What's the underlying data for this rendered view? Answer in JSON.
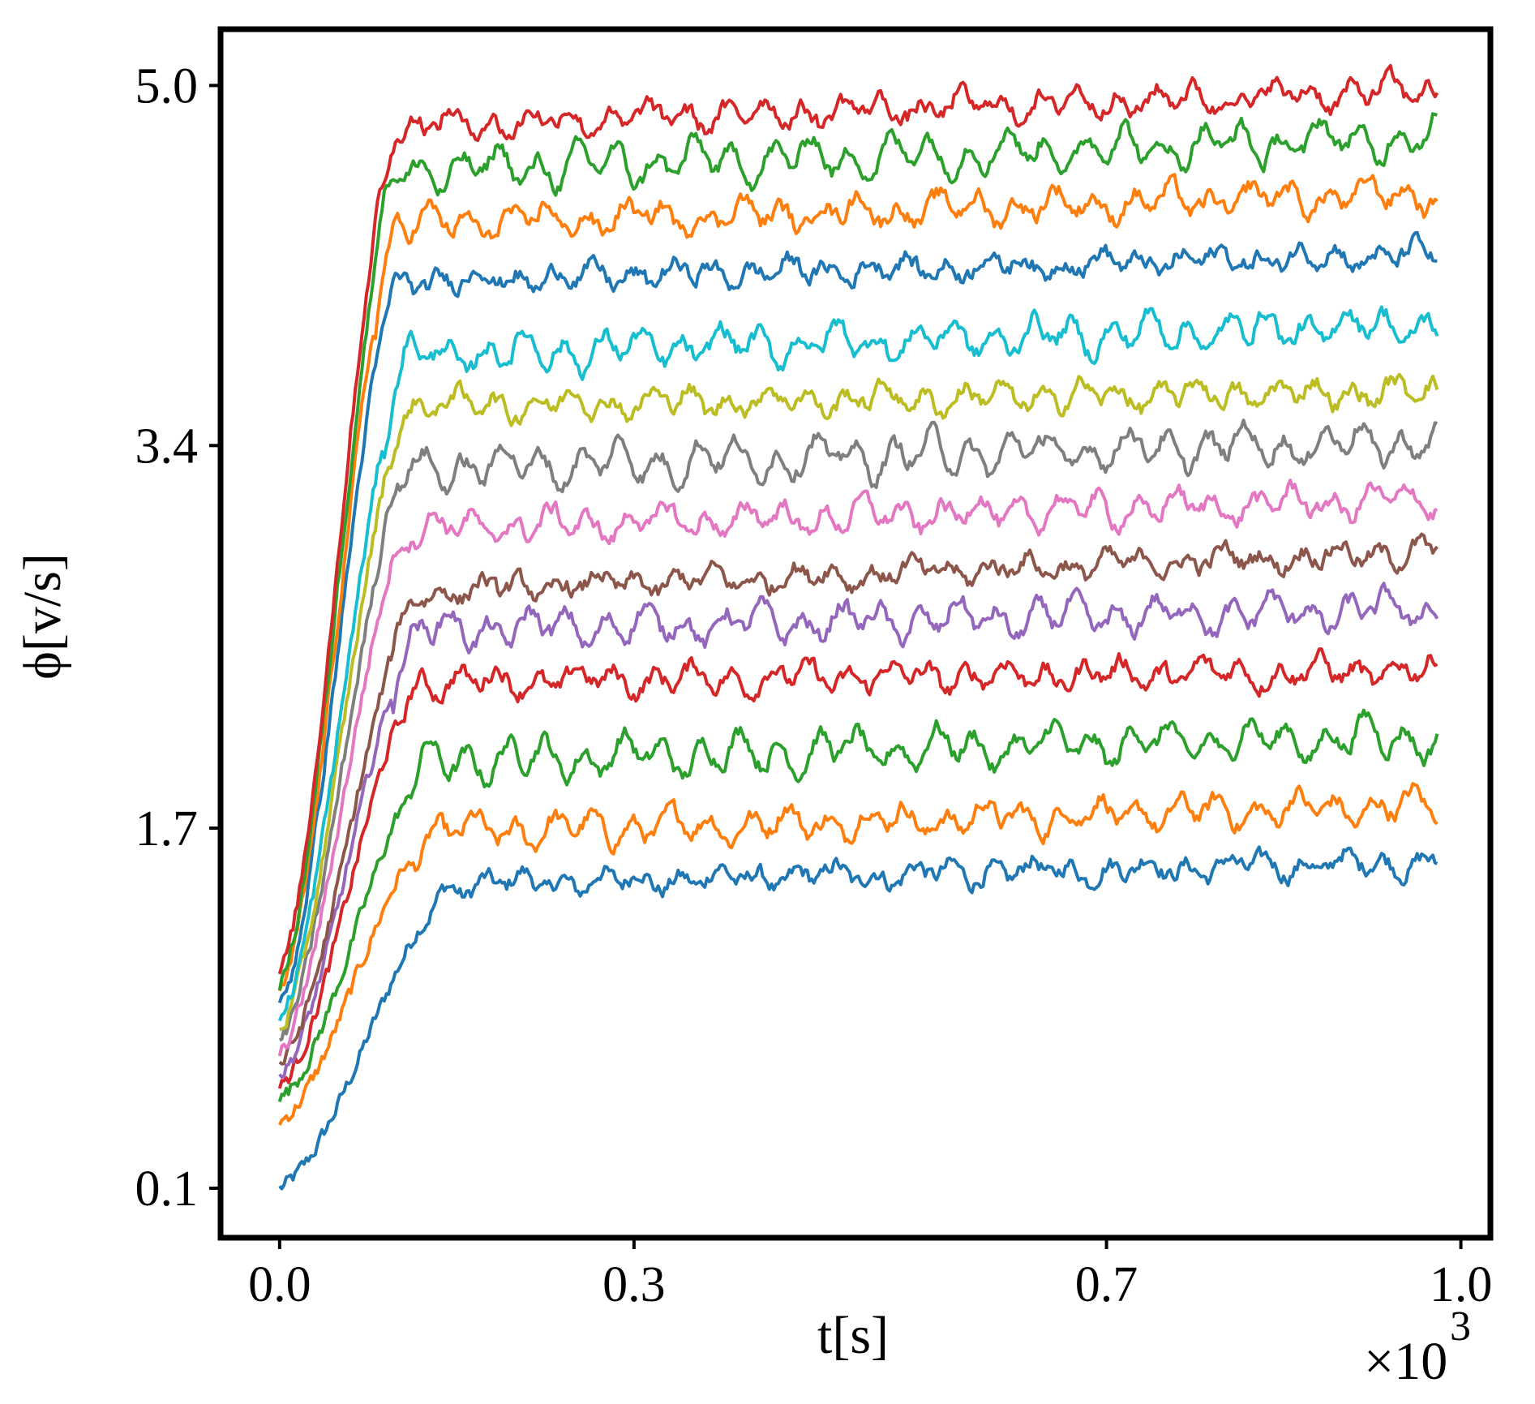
{
  "chart_data": {
    "type": "line",
    "xlabel": "t[s]",
    "ylabel": "ϕ[v/s]",
    "x_multiplier": "×10",
    "x_multiplier_exp": "3",
    "xlim": [
      -0.05,
      1.025
    ],
    "ylim": [
      -0.12,
      5.25
    ],
    "xticks": [
      0.0,
      0.3,
      0.7,
      1.0
    ],
    "xtick_labels": [
      "0.0",
      "0.3",
      "0.7",
      "1.0"
    ],
    "yticks": [
      0.1,
      1.7,
      3.4,
      5.0
    ],
    "ytick_labels": [
      "0.1",
      "1.7",
      "3.4",
      "5.0"
    ],
    "grid": false,
    "legend": "none",
    "x_range": [
      0.0,
      0.98
    ],
    "series": [
      {
        "color": "#1f77b4",
        "start": 0.1,
        "rise_end": 0.15,
        "plateau": 1.45,
        "end": 1.55
      },
      {
        "color": "#ff7f0e",
        "start": 0.4,
        "rise_end": 0.13,
        "plateau": 1.68,
        "end": 1.8
      },
      {
        "color": "#2ca02c",
        "start": 0.5,
        "rise_end": 0.13,
        "plateau": 2.0,
        "end": 2.11
      },
      {
        "color": "#d62728",
        "start": 0.55,
        "rise_end": 0.12,
        "plateau": 2.35,
        "end": 2.4
      },
      {
        "color": "#9467bd",
        "start": 0.6,
        "rise_end": 0.12,
        "plateau": 2.58,
        "end": 2.67
      },
      {
        "color": "#8c564b",
        "start": 0.65,
        "rise_end": 0.12,
        "plateau": 2.75,
        "end": 2.93
      },
      {
        "color": "#e377c2",
        "start": 0.7,
        "rise_end": 0.11,
        "plateau": 3.03,
        "end": 3.16
      },
      {
        "color": "#7f7f7f",
        "start": 0.75,
        "rise_end": 0.11,
        "plateau": 3.3,
        "end": 3.42
      },
      {
        "color": "#bcbd22",
        "start": 0.8,
        "rise_end": 0.11,
        "plateau": 3.58,
        "end": 3.64
      },
      {
        "color": "#17becf",
        "start": 0.85,
        "rise_end": 0.11,
        "plateau": 3.8,
        "end": 3.94
      },
      {
        "color": "#1f77b4",
        "start": 0.9,
        "rise_end": 0.1,
        "plateau": 4.13,
        "end": 4.25
      },
      {
        "color": "#ff7f0e",
        "start": 0.95,
        "rise_end": 0.1,
        "plateau": 4.38,
        "end": 4.52
      },
      {
        "color": "#2ca02c",
        "start": 1.0,
        "rise_end": 0.1,
        "plateau": 4.62,
        "end": 4.77
      },
      {
        "color": "#d62728",
        "start": 1.05,
        "rise_end": 0.1,
        "plateau": 4.82,
        "end": 4.98
      }
    ]
  }
}
